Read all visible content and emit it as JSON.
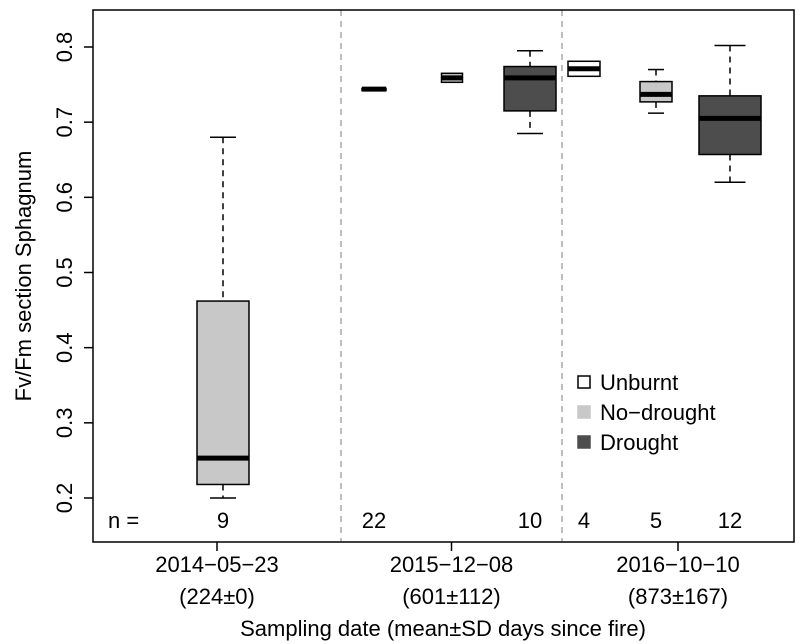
{
  "chart_data": {
    "type": "boxplot",
    "title": "",
    "xlabel": "Sampling date (mean±SD days since fire)",
    "ylabel": "Fv/Fm section Sphagnum",
    "ylim": [
      0.195,
      0.84
    ],
    "yticks": [
      "0.2",
      "0.3",
      "0.4",
      "0.5",
      "0.6",
      "0.7",
      "0.8"
    ],
    "grid": false,
    "legend_position": "bottom-right",
    "n_prefix": "n =",
    "groups": [
      {
        "date": "2014−05−23",
        "days": "(224±0)"
      },
      {
        "date": "2015−12−08",
        "days": "(601±112)"
      },
      {
        "date": "2016−10−10",
        "days": "(873±167)"
      }
    ],
    "series": [
      {
        "name": "Unburnt",
        "color": "#ffffff"
      },
      {
        "name": "No−drought",
        "color": "#c8c8c8"
      },
      {
        "name": "Drought",
        "color": "#4d4d4d"
      }
    ],
    "boxes": [
      {
        "group": 0,
        "series": 1,
        "n": "9",
        "whisker_low": 0.2,
        "q1": 0.218,
        "median": 0.253,
        "q3": 0.462,
        "whisker_high": 0.68
      },
      {
        "group": 1,
        "series": 0,
        "n": "22",
        "whisker_low": 0.742,
        "q1": 0.742,
        "median": 0.744,
        "q3": 0.745,
        "whisker_high": 0.745
      },
      {
        "group": 1,
        "series": 1,
        "n": "",
        "whisker_low": 0.753,
        "q1": 0.753,
        "median": 0.759,
        "q3": 0.765,
        "whisker_high": 0.765
      },
      {
        "group": 1,
        "series": 2,
        "n": "10",
        "whisker_low": 0.685,
        "q1": 0.715,
        "median": 0.759,
        "q3": 0.774,
        "whisker_high": 0.795
      },
      {
        "group": 2,
        "series": 0,
        "n": "4",
        "whisker_low": 0.761,
        "q1": 0.761,
        "median": 0.771,
        "q3": 0.781,
        "whisker_high": 0.781
      },
      {
        "group": 2,
        "series": 1,
        "n": "5",
        "whisker_low": 0.712,
        "q1": 0.727,
        "median": 0.737,
        "q3": 0.754,
        "whisker_high": 0.77
      },
      {
        "group": 2,
        "series": 2,
        "n": "12",
        "whisker_low": 0.62,
        "q1": 0.657,
        "median": 0.705,
        "q3": 0.735,
        "whisker_high": 0.802
      }
    ]
  }
}
